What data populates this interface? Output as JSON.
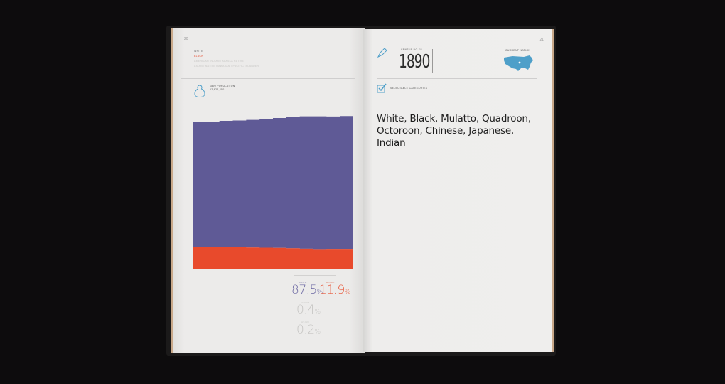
{
  "left_page": {
    "page_number": "20",
    "legend": [
      "WHITE",
      "BLACK",
      "AMERICAN INDIAN / ALASKA NATIVE",
      "ASIAN / NATIVE HAWAIIAN / PACIFIC ISLANDER"
    ],
    "population_label": "1890 POPULATION",
    "population_value": "62,622,250",
    "stats": {
      "white_label": "WHITE",
      "white_value": "87.5",
      "white_unit": "%",
      "black_label": "BLACK",
      "black_value": "11.9",
      "black_unit": "%",
      "indian_label": "INDIAN",
      "indian_value": "0.4",
      "indian_unit": "%",
      "asian_label": "ASIAN",
      "asian_value": "0.2",
      "asian_unit": "%"
    }
  },
  "right_page": {
    "page_number": "21",
    "census_label": "CENSUS NO. 11",
    "year": "1890",
    "map_label": "CURRENT NATION",
    "selectable_label": "SELECTABLE CATEGORIES",
    "categories_text": "White, Black, Mulatto, Quadroon, Octoroon, Chinese, Japanese, Indian"
  },
  "colors": {
    "white_series": "#5f5a96",
    "black_series": "#e84a2c",
    "accent_blue": "#4e9fc9",
    "background": "#0d0c0d"
  },
  "chart_data": {
    "type": "area",
    "series": [
      {
        "name": "BLACK",
        "values": [
          13.0,
          13.0,
          12.9,
          12.9,
          12.7,
          12.6,
          12.5,
          12.3,
          12.0,
          11.8,
          11.9,
          11.9
        ]
      },
      {
        "name": "WHITE",
        "values": [
          75.2,
          75.4,
          76.0,
          76.2,
          76.8,
          77.4,
          78.1,
          78.7,
          79.6,
          79.8,
          79.6,
          79.9
        ]
      }
    ]
  }
}
